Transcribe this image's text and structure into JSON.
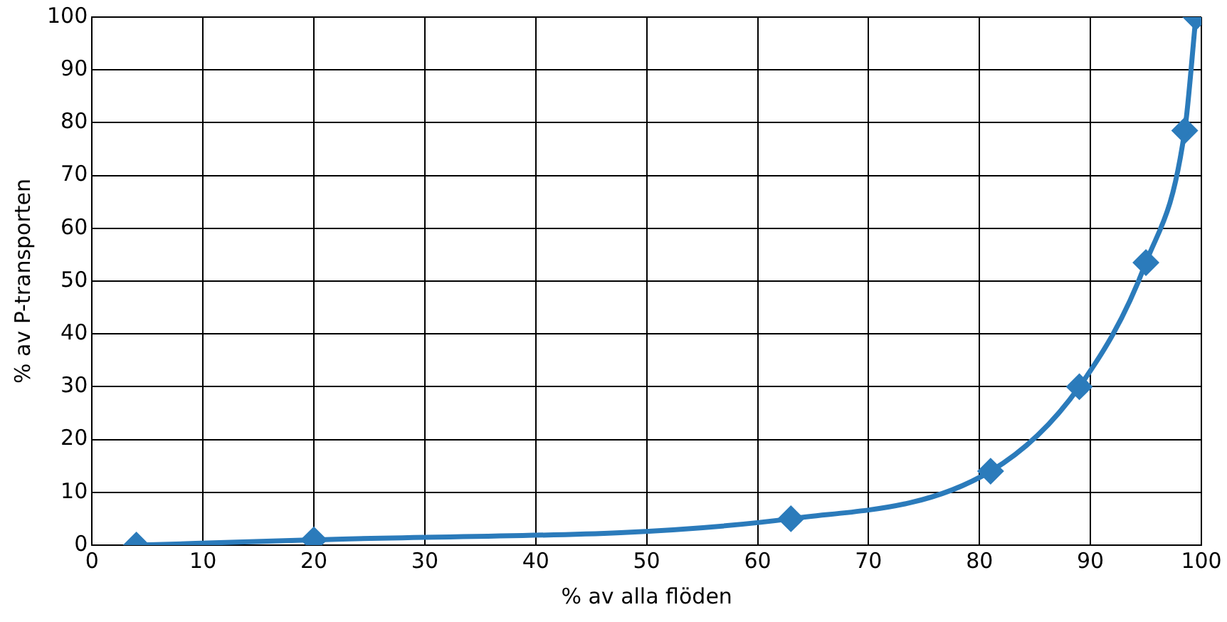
{
  "chart_data": {
    "type": "line",
    "xlabel": "% av alla flöden",
    "ylabel": "% av P-transporten",
    "x": [
      4,
      20,
      63,
      81,
      89,
      95,
      98.5,
      99.5
    ],
    "series": [
      {
        "color": "#2b7bbb",
        "values": [
          0,
          1,
          5,
          14,
          30,
          53.5,
          78.5,
          100
        ]
      }
    ],
    "xlim": [
      0,
      100
    ],
    "xticks": [
      0,
      10,
      20,
      30,
      40,
      50,
      60,
      70,
      80,
      90,
      100
    ],
    "ylim": [
      0,
      100
    ],
    "yticks": [
      0,
      10,
      20,
      30,
      40,
      50,
      60,
      70,
      80,
      90,
      100
    ],
    "grid": true,
    "legend": false,
    "marker": "diamond",
    "line_style": "solid"
  }
}
